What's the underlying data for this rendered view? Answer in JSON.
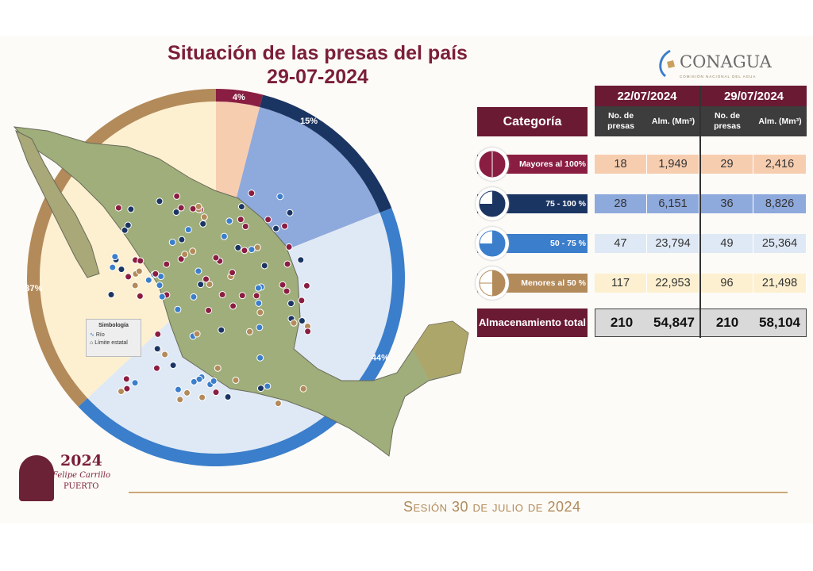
{
  "header": {
    "title_line1": "Situación de las presas del país",
    "title_line2": "29-07-2024"
  },
  "logo": {
    "name": "CONAGUA",
    "subtitle": "COMISIÓN NACIONAL DEL AGUA"
  },
  "legend": {
    "title": "Simbología",
    "items": [
      "Río",
      "Límite estatal"
    ]
  },
  "chart_data": {
    "type": "pie",
    "categories": [
      "Mayores al 100%",
      "75 - 100 %",
      "50 - 75 %",
      "Menores al 50 %"
    ],
    "values": [
      4,
      15,
      44,
      37
    ],
    "labels": [
      "4%",
      "15%",
      "44%",
      "37%"
    ],
    "ring_colors": [
      "#8a1e42",
      "#1b3563",
      "#3b7ecb",
      "#b38a5a"
    ],
    "fill_colors": [
      "#f7cdb0",
      "#8ea9dc",
      "#dfe9f5",
      "#fdf0d0"
    ]
  },
  "table": {
    "category_header": "Categoría",
    "dates": [
      "22/07/2024",
      "29/07/2024"
    ],
    "subheaders": [
      "No. de presas",
      "Alm. (Mm³)",
      "No. de presas",
      "Alm. (Mm³)"
    ],
    "rows": [
      {
        "label": "Mayores al 100%",
        "color": "#8a1e42",
        "cell_color": "#f7cdb0",
        "values": [
          "18",
          "1,949",
          "29",
          "2,416"
        ]
      },
      {
        "label": "75 - 100 %",
        "color": "#1b3563",
        "cell_color": "#8ea9dc",
        "values": [
          "28",
          "6,151",
          "36",
          "8,826"
        ]
      },
      {
        "label": "50 - 75 %",
        "color": "#3b7ecb",
        "cell_color": "#dfe9f5",
        "values": [
          "47",
          "23,794",
          "49",
          "25,364"
        ]
      },
      {
        "label": "Menores al 50 %",
        "color": "#b38a5a",
        "cell_color": "#fdf0d0",
        "values": [
          "117",
          "22,953",
          "96",
          "21,498"
        ]
      }
    ],
    "total": {
      "label": "Almacenamiento total",
      "values": [
        "210",
        "54,847",
        "210",
        "58,104"
      ]
    }
  },
  "emblem": {
    "year": "2024",
    "name": "Felipe Carrillo",
    "surname": "PUERTO"
  },
  "footer": {
    "session": "Sesión 30 de julio de 2024"
  }
}
